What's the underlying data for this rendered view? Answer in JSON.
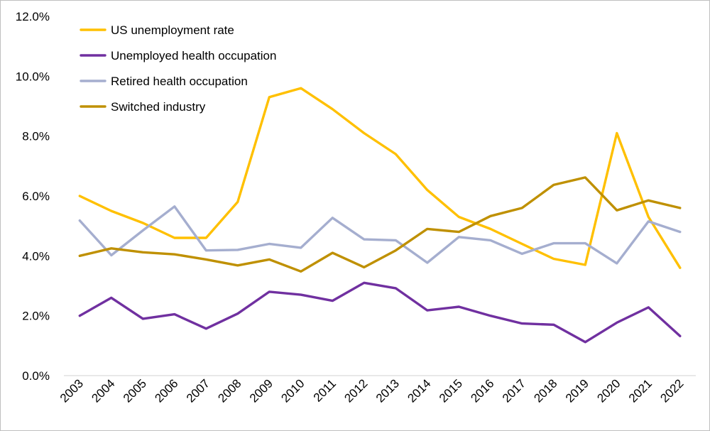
{
  "chart_data": {
    "type": "line",
    "title": "",
    "xlabel": "",
    "ylabel": "",
    "categories": [
      "2003",
      "2004",
      "2005",
      "2006",
      "2007",
      "2008",
      "2009",
      "2010",
      "2011",
      "2012",
      "2013",
      "2014",
      "2015",
      "2016",
      "2017",
      "2018",
      "2019",
      "2020",
      "2021",
      "2022"
    ],
    "ylim": [
      0,
      12
    ],
    "yticks": [
      0,
      2,
      4,
      6,
      8,
      10,
      12
    ],
    "ytick_labels": [
      "0.0%",
      "2.0%",
      "4.0%",
      "6.0%",
      "8.0%",
      "10.0%",
      "12.0%"
    ],
    "grid": false,
    "legend_position": "top-left",
    "series": [
      {
        "name": "US unemployment rate",
        "color": "#FFC000",
        "values": [
          6.0,
          5.5,
          5.1,
          4.6,
          4.6,
          5.8,
          9.3,
          9.6,
          8.9,
          8.1,
          7.4,
          6.2,
          5.3,
          4.9,
          4.4,
          3.9,
          3.7,
          8.1,
          5.3,
          3.6
        ]
      },
      {
        "name": "Unemployed health occupation",
        "color": "#7030A0",
        "values": [
          2.0,
          2.6,
          1.9,
          2.05,
          1.57,
          2.07,
          2.8,
          2.7,
          2.5,
          3.1,
          2.92,
          2.18,
          2.3,
          2.0,
          1.74,
          1.7,
          1.12,
          1.77,
          2.28,
          1.32
        ]
      },
      {
        "name": "Retired health occupation",
        "color": "#A5AECF",
        "values": [
          5.18,
          4.02,
          4.85,
          5.65,
          4.18,
          4.2,
          4.4,
          4.27,
          5.27,
          4.55,
          4.52,
          3.77,
          4.63,
          4.52,
          4.07,
          4.42,
          4.42,
          3.75,
          5.15,
          4.8
        ]
      },
      {
        "name": "Switched industry",
        "color": "#BF9000",
        "values": [
          4.0,
          4.25,
          4.12,
          4.05,
          3.88,
          3.68,
          3.88,
          3.48,
          4.1,
          3.62,
          4.18,
          4.9,
          4.8,
          5.33,
          5.6,
          6.37,
          6.62,
          5.52,
          5.85,
          5.6
        ]
      }
    ]
  }
}
